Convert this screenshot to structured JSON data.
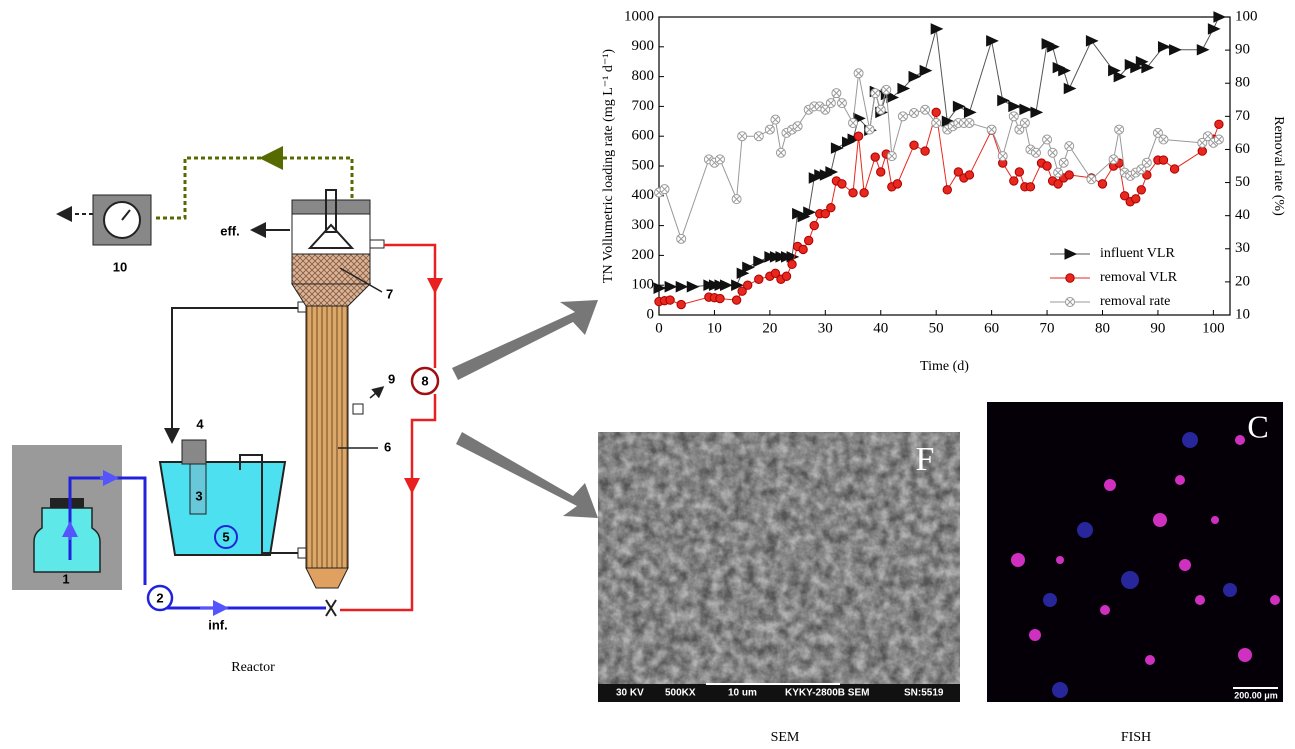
{
  "diagram": {
    "parts": [
      "1",
      "2",
      "3",
      "4",
      "5",
      "6",
      "7",
      "8",
      "9",
      "10"
    ],
    "effluent": "eff.",
    "influent": "inf.",
    "caption": "Reactor"
  },
  "images": [
    {
      "label": "F",
      "caption": "SEM",
      "scale_texts": [
        "30 KV",
        "500KX",
        "10 um",
        "KYKY-2800B SEM",
        "SN:5519"
      ]
    },
    {
      "label": "C",
      "caption": "FISH",
      "scale_texts": [
        "200.00 μm"
      ]
    }
  ],
  "chart_data": {
    "type": "line",
    "x_label": "Time (d)",
    "y_label": "TN Vollumetric loading rate (mg L⁻¹ d⁻¹)",
    "y2_label": "Removal rate (%)",
    "xlim": [
      0,
      103
    ],
    "xticks": [
      0,
      10,
      20,
      30,
      40,
      50,
      60,
      70,
      80,
      90,
      100
    ],
    "ylim": [
      0,
      1000
    ],
    "yticks": [
      0,
      100,
      200,
      300,
      400,
      500,
      600,
      700,
      800,
      900,
      1000
    ],
    "y2lim": [
      10,
      100
    ],
    "y2ticks": [
      10,
      20,
      30,
      40,
      50,
      60,
      70,
      80,
      90,
      100
    ],
    "legend": "center right",
    "series": [
      {
        "name": "influent VLR",
        "color": "#555555",
        "marker": "triangle",
        "x": [
          0,
          2,
          4,
          6,
          9,
          10,
          11,
          12,
          14,
          15,
          16,
          18,
          20,
          21,
          22,
          23,
          24,
          25,
          26,
          27,
          28,
          29,
          30,
          31,
          32,
          34,
          35,
          36,
          38,
          39,
          40,
          41,
          42,
          44,
          46,
          48,
          50,
          52,
          54,
          56,
          60,
          62,
          64,
          66,
          68,
          70,
          71,
          72,
          73,
          74,
          78,
          82,
          83,
          85,
          86,
          87,
          88,
          91,
          93,
          98,
          100,
          101
        ],
        "values": [
          90,
          95,
          95,
          95,
          100,
          100,
          100,
          100,
          100,
          140,
          160,
          180,
          195,
          195,
          195,
          195,
          195,
          340,
          330,
          345,
          460,
          470,
          470,
          480,
          560,
          580,
          590,
          660,
          620,
          750,
          680,
          740,
          730,
          760,
          800,
          820,
          960,
          650,
          700,
          680,
          920,
          720,
          700,
          690,
          680,
          910,
          900,
          830,
          820,
          760,
          920,
          820,
          800,
          840,
          830,
          850,
          830,
          900,
          890,
          890,
          960,
          1000
        ]
      },
      {
        "name": "removal VLR",
        "color": "#e8281e",
        "marker": "circle",
        "x": [
          0,
          1,
          2,
          4,
          9,
          10,
          11,
          14,
          15,
          16,
          18,
          20,
          21,
          22,
          23,
          24,
          25,
          26,
          27,
          28,
          29,
          30,
          31,
          32,
          33,
          35,
          36,
          37,
          39,
          40,
          41,
          42,
          43,
          46,
          48,
          50,
          52,
          54,
          55,
          56,
          60,
          62,
          64,
          65,
          66,
          67,
          69,
          70,
          71,
          72,
          73,
          74,
          78,
          80,
          82,
          83,
          84,
          85,
          86,
          87,
          88,
          90,
          91,
          93,
          98,
          99,
          100,
          101
        ],
        "values": [
          45,
          48,
          50,
          35,
          60,
          58,
          55,
          50,
          80,
          100,
          120,
          130,
          140,
          120,
          130,
          170,
          230,
          220,
          250,
          300,
          340,
          340,
          360,
          450,
          440,
          410,
          600,
          410,
          530,
          480,
          540,
          430,
          440,
          570,
          550,
          680,
          420,
          480,
          460,
          470,
          620,
          510,
          450,
          480,
          430,
          430,
          510,
          500,
          450,
          440,
          460,
          470,
          460,
          440,
          500,
          510,
          400,
          380,
          390,
          420,
          470,
          520,
          520,
          490,
          550,
          600,
          590,
          640
        ]
      },
      {
        "name": "removal rate",
        "color": "#999999",
        "marker": "crossed-circle",
        "axis": "y2",
        "x": [
          0,
          1,
          4,
          9,
          10,
          11,
          14,
          15,
          18,
          20,
          21,
          22,
          23,
          24,
          25,
          27,
          28,
          29,
          30,
          31,
          32,
          33,
          35,
          36,
          38,
          39,
          40,
          41,
          42,
          44,
          46,
          48,
          50,
          52,
          53,
          54,
          55,
          56,
          60,
          62,
          64,
          65,
          66,
          67,
          68,
          70,
          71,
          72,
          73,
          74,
          78,
          82,
          83,
          84,
          85,
          86,
          87,
          88,
          90,
          91,
          98,
          99,
          100,
          101
        ],
        "values": [
          47,
          48,
          33,
          57,
          56,
          57,
          45,
          64,
          64,
          66,
          69,
          59,
          65,
          66,
          67,
          72,
          73,
          73,
          72,
          74,
          77,
          74,
          68,
          83,
          66,
          77,
          72,
          78,
          58,
          70,
          71,
          72,
          68,
          66,
          67,
          68,
          68,
          68,
          66,
          58,
          70,
          66,
          68,
          60,
          59,
          63,
          59,
          53,
          56,
          61,
          51,
          57,
          66,
          53,
          52,
          53,
          54,
          56,
          65,
          63,
          62,
          64,
          62,
          63
        ]
      }
    ]
  }
}
